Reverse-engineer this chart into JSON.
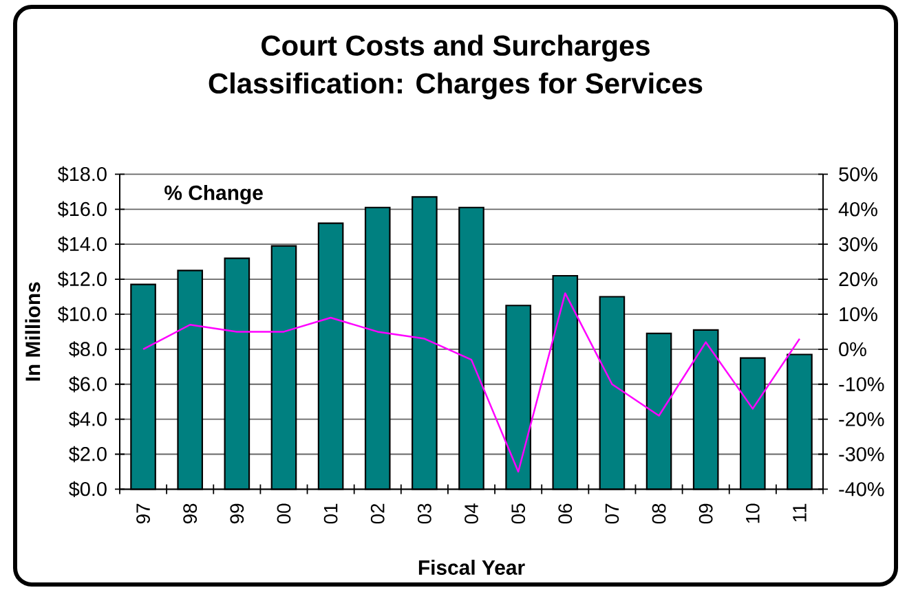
{
  "chart_data": {
    "type": "bar",
    "title": "Court Costs and Surcharges",
    "subtitle": "Classification: Charges for Services",
    "xlabel": "Fiscal Year",
    "ylabel": "In Millions",
    "annotations": [
      "% Change"
    ],
    "categories": [
      "97",
      "98",
      "99",
      "00",
      "01",
      "02",
      "03",
      "04",
      "05",
      "06",
      "07",
      "08",
      "09",
      "10",
      "11"
    ],
    "series": [
      {
        "color": "#008080",
        "values": [
          11.7,
          12.5,
          13.2,
          13.9,
          15.2,
          16.1,
          16.7,
          16.1,
          10.5,
          12.2,
          11.0,
          8.9,
          9.1,
          7.5,
          7.7
        ]
      },
      {
        "type": "line",
        "axis": "y2",
        "color": "#ff00ff",
        "values": [
          0,
          7,
          5,
          5,
          9,
          5,
          3,
          -3,
          -35,
          16,
          -10,
          -19,
          2,
          -17,
          3
        ]
      }
    ],
    "ylim": [
      0,
      18
    ],
    "yticks": [
      {
        "value": 0,
        "label": "$0.0"
      },
      {
        "value": 2,
        "label": "$2.0"
      },
      {
        "value": 4,
        "label": "$4.0"
      },
      {
        "value": 6,
        "label": "$6.0"
      },
      {
        "value": 8,
        "label": "$8.0"
      },
      {
        "value": 10,
        "label": "$10.0"
      },
      {
        "value": 12,
        "label": "$12.0"
      },
      {
        "value": 14,
        "label": "$14.0"
      },
      {
        "value": 16,
        "label": "$16.0"
      },
      {
        "value": 18,
        "label": "$18.0"
      }
    ],
    "y2lim": [
      -40,
      50
    ],
    "y2ticks": [
      {
        "value": -40,
        "label": "-40%"
      },
      {
        "value": -30,
        "label": "-30%"
      },
      {
        "value": -20,
        "label": "-20%"
      },
      {
        "value": -10,
        "label": "-10%"
      },
      {
        "value": 0,
        "label": "0%"
      },
      {
        "value": 10,
        "label": "10%"
      },
      {
        "value": 20,
        "label": "20%"
      },
      {
        "value": 30,
        "label": "30%"
      },
      {
        "value": 40,
        "label": "40%"
      },
      {
        "value": 50,
        "label": "50%"
      }
    ],
    "grid": "y"
  }
}
